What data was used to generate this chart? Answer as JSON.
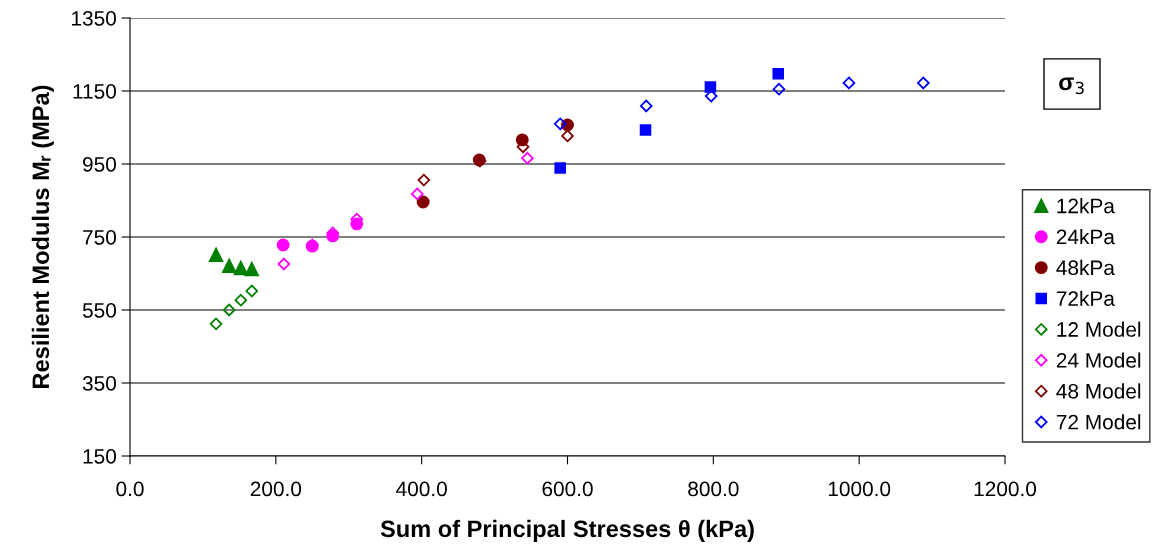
{
  "chart_data": {
    "type": "scatter",
    "xlabel": "Sum of Principal Stresses θ (kPa)",
    "ylabel": "Resilient Modulus Mᵣ (MPa)",
    "annotations": [
      "σ$_{3}$"
    ],
    "xlim": [
      0,
      1200
    ],
    "xticks": [
      {
        "value": 0,
        "label": "0.0"
      },
      {
        "value": 200,
        "label": "200.0"
      },
      {
        "value": 400,
        "label": "400.0"
      },
      {
        "value": 600,
        "label": "600.0"
      },
      {
        "value": 800,
        "label": "800.0"
      },
      {
        "value": 1000,
        "label": "1000.0"
      },
      {
        "value": 1200,
        "label": "1200.0"
      }
    ],
    "ylim": [
      150,
      1350
    ],
    "yticks": [
      150,
      350,
      550,
      750,
      950,
      1150,
      1350
    ],
    "grid": "y",
    "legend": "right",
    "series": [
      {
        "name": "12kPa",
        "color": "#008000",
        "marker": "triangle",
        "x": [
          118,
          136,
          152,
          167
        ],
        "values": [
          701,
          671,
          665,
          662
        ]
      },
      {
        "name": "24kPa",
        "color": "#ff00ff",
        "marker": "circle",
        "x": [
          210,
          250,
          278,
          311
        ],
        "values": [
          728,
          725,
          753,
          786
        ]
      },
      {
        "name": "48kPa",
        "color": "#800000",
        "marker": "circle",
        "x": [
          402,
          479,
          538,
          600
        ],
        "values": [
          846,
          961,
          1016,
          1057
        ]
      },
      {
        "name": "72kPa",
        "color": "#0000ff",
        "marker": "square",
        "x": [
          590,
          707,
          796,
          889
        ],
        "values": [
          939,
          1043,
          1161,
          1197
        ]
      },
      {
        "name": "12 Model",
        "color": "#008000",
        "marker": "diamond",
        "x": [
          118,
          136,
          152,
          167
        ],
        "values": [
          512,
          550,
          577,
          602
        ]
      },
      {
        "name": "24 Model",
        "color": "#ff00ff",
        "marker": "diamond",
        "x": [
          211,
          250,
          278,
          311,
          394,
          545
        ],
        "values": [
          676,
          728,
          761,
          799,
          868,
          966
        ]
      },
      {
        "name": "48 Model",
        "color": "#800000",
        "marker": "diamond",
        "x": [
          403,
          480,
          539,
          600
        ],
        "values": [
          906,
          958,
          997,
          1027
        ]
      },
      {
        "name": "72 Model",
        "color": "#0000ff",
        "marker": "diamond",
        "x": [
          590,
          708,
          797,
          890,
          986,
          1088
        ],
        "values": [
          1060,
          1109,
          1136,
          1155,
          1172,
          1172
        ]
      }
    ]
  }
}
